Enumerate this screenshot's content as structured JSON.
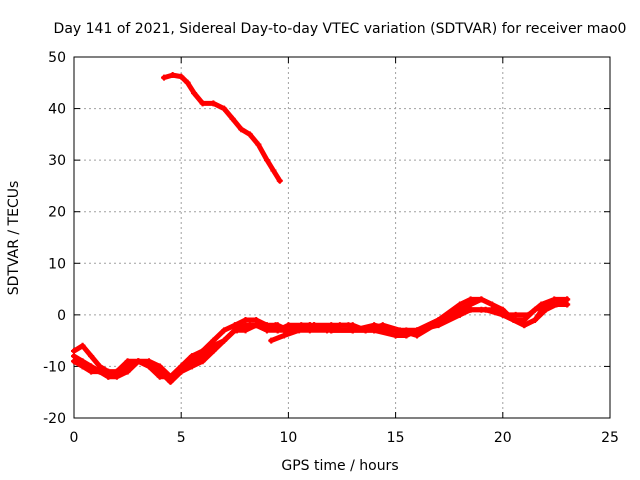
{
  "chart_data": {
    "type": "line",
    "title": "Day 141 of 2021, Sidereal Day-to-day VTEC variation (SDTVAR) for receiver mao0",
    "xlabel": "GPS time / hours",
    "ylabel": "SDTVAR / TECUs",
    "xlim": [
      0,
      25
    ],
    "ylim": [
      -20,
      50
    ],
    "xticks": [
      0,
      5,
      10,
      15,
      20,
      25
    ],
    "yticks": [
      -20,
      -10,
      0,
      10,
      20,
      30,
      40,
      50
    ],
    "grid": true,
    "color": "#ff0000",
    "series": [
      {
        "name": "satellite-track-high",
        "x": [
          4.2,
          4.6,
          5.0,
          5.3,
          5.6,
          6.0,
          6.5,
          7.0,
          7.4,
          7.8,
          8.2,
          8.6,
          9.0,
          9.3,
          9.6
        ],
        "y": [
          46,
          46.5,
          46.2,
          45,
          43,
          41,
          41,
          40,
          38,
          36,
          35,
          33,
          30,
          28,
          26
        ]
      },
      {
        "name": "satellite-track-a",
        "x": [
          0,
          0.4,
          0.8,
          1.2,
          1.6,
          2.0,
          2.5,
          3.0,
          3.5,
          4.0,
          4.5,
          5.0,
          5.5,
          6.0,
          6.5,
          7.0,
          7.5,
          8.0,
          8.5,
          9.0,
          9.5,
          10.0,
          11.0,
          12.0,
          13.0,
          14.0,
          15.0,
          15.5,
          16.0,
          17.0,
          18.0,
          18.5,
          19.0,
          19.5,
          20.0,
          20.5,
          21.0,
          21.5,
          22.0,
          22.5,
          23.0
        ],
        "y": [
          -8,
          -9,
          -10,
          -11,
          -12,
          -12,
          -11,
          -9,
          -10,
          -11,
          -13,
          -11,
          -10,
          -9,
          -7,
          -5,
          -3,
          -2,
          -2,
          -3,
          -2,
          -3,
          -3,
          -3,
          -3,
          -3,
          -3,
          -4,
          -3,
          -1,
          1,
          2,
          3,
          2,
          1,
          -1,
          -1,
          1,
          2,
          2,
          2
        ]
      },
      {
        "name": "satellite-track-b",
        "x": [
          0,
          0.4,
          0.8,
          1.2,
          1.6,
          2.0,
          2.5,
          3.0,
          3.5,
          4.0,
          4.5,
          5.0,
          5.5,
          6.0,
          6.5,
          7.0,
          7.5,
          8.0,
          8.5,
          9.0,
          9.5,
          10.0,
          11.0,
          12.0,
          13.0,
          14.0,
          15.0,
          15.5,
          16.0,
          17.0,
          18.0,
          18.5,
          19.0,
          19.5,
          20.0,
          20.5,
          21.0,
          21.5,
          22.0,
          22.5,
          23.0
        ],
        "y": [
          -7,
          -6,
          -8,
          -10,
          -11,
          -11,
          -9,
          -9,
          -9,
          -10,
          -12,
          -10,
          -8,
          -7,
          -5,
          -3,
          -2,
          -1,
          -1,
          -2,
          -3,
          -2,
          -2,
          -3,
          -3,
          -2,
          -3,
          -3,
          -3,
          -1,
          2,
          3,
          3,
          2,
          0,
          -1,
          -2,
          -1,
          1,
          2,
          3
        ]
      },
      {
        "name": "satellite-track-c",
        "x": [
          0,
          0.4,
          0.8,
          1.2,
          1.6,
          2.0,
          2.5,
          3.0,
          3.5,
          4.0,
          4.5,
          5.0,
          5.5,
          6.0,
          6.5,
          7.0,
          7.5,
          8.0,
          8.5,
          9.0,
          9.5,
          10.0,
          11.0,
          12.0,
          13.0,
          14.0,
          15.0,
          15.5,
          16.0,
          17.0,
          18.0,
          18.5,
          19.0,
          19.5,
          20.0,
          20.5,
          21.0,
          21.5,
          22.0,
          22.5,
          23.0
        ],
        "y": [
          -9,
          -10,
          -11,
          -11,
          -12,
          -11,
          -10,
          -9,
          -10,
          -12,
          -12,
          -11,
          -9,
          -8,
          -6,
          -5,
          -3,
          -3,
          -2,
          -3,
          -3,
          -3,
          -2,
          -3,
          -3,
          -3,
          -4,
          -4,
          -3,
          -2,
          0,
          1,
          1,
          1,
          0,
          -1,
          -2,
          -1,
          2,
          2,
          2
        ]
      },
      {
        "name": "satellite-track-d",
        "x": [
          9.2,
          9.8,
          10.5,
          11.2,
          12.0,
          12.8,
          13.6,
          14.4,
          15.2,
          16.0,
          16.8,
          17.6,
          18.4,
          19.2,
          20.0,
          20.6,
          21.2,
          21.8,
          22.4,
          23.0
        ],
        "y": [
          -5,
          -4,
          -3,
          -2,
          -2,
          -2,
          -3,
          -2,
          -3,
          -4,
          -2,
          0,
          1,
          1,
          0,
          0,
          0,
          2,
          3,
          3
        ]
      },
      {
        "name": "satellite-track-e",
        "x": [
          7.6,
          8.2,
          8.8,
          9.4,
          10.0,
          10.6,
          11.2,
          11.8,
          12.4,
          13.0,
          13.6
        ],
        "y": [
          -3,
          -2,
          -2,
          -2,
          -3,
          -2,
          -2,
          -3,
          -2,
          -2,
          -3
        ]
      }
    ]
  }
}
